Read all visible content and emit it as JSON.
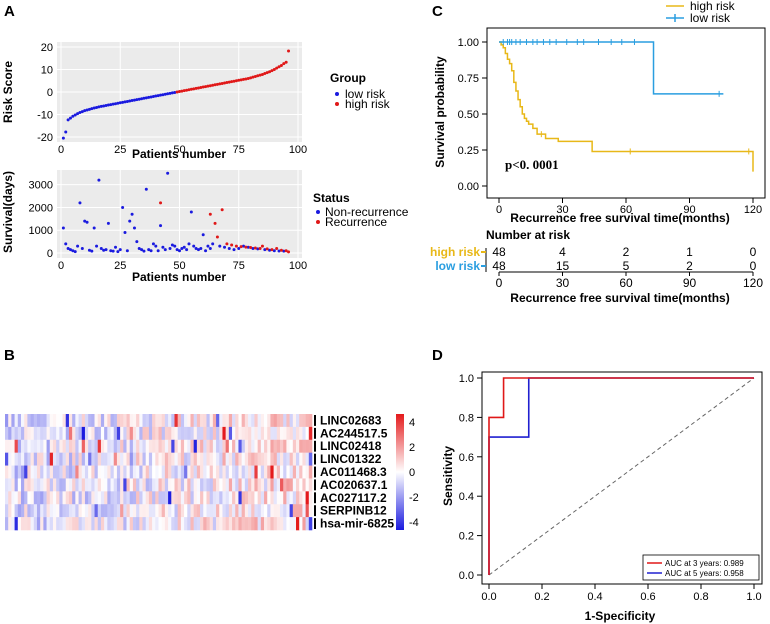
{
  "panels": {
    "a": "A",
    "b": "B",
    "c": "C",
    "d": "D"
  },
  "chart_data": [
    {
      "type": "scatter",
      "id": "risk-score",
      "title": "",
      "xlabel": "Patients number",
      "ylabel": "Risk Score",
      "xlim": [
        0,
        100
      ],
      "ylim": [
        -20,
        20
      ],
      "xticks": [
        0,
        25,
        50,
        75,
        100
      ],
      "yticks": [
        -20,
        -10,
        0,
        10,
        20
      ],
      "legend_title": "Group",
      "series": [
        {
          "name": "low risk",
          "color": "#1a1adf",
          "x": [
            1,
            2,
            3,
            4,
            5,
            6,
            7,
            8,
            9,
            10,
            11,
            12,
            13,
            14,
            15,
            16,
            17,
            18,
            19,
            20,
            21,
            22,
            23,
            24,
            25,
            26,
            27,
            28,
            29,
            30,
            31,
            32,
            33,
            34,
            35,
            36,
            37,
            38,
            39,
            40,
            41,
            42,
            43,
            44,
            45,
            46,
            47,
            48
          ],
          "y": [
            -20.5,
            -17.8,
            -12.4,
            -11.6,
            -10.8,
            -10.2,
            -9.6,
            -9.1,
            -8.7,
            -8.3,
            -8.0,
            -7.7,
            -7.4,
            -7.1,
            -6.9,
            -6.6,
            -6.4,
            -6.2,
            -6.0,
            -5.8,
            -5.6,
            -5.4,
            -5.2,
            -5.0,
            -4.8,
            -4.6,
            -4.4,
            -4.2,
            -4.0,
            -3.8,
            -3.6,
            -3.4,
            -3.2,
            -3.0,
            -2.8,
            -2.6,
            -2.4,
            -2.2,
            -2.0,
            -1.8,
            -1.6,
            -1.4,
            -1.2,
            -1.0,
            -0.8,
            -0.6,
            -0.4,
            -0.2
          ]
        },
        {
          "name": "high risk",
          "color": "#e01818",
          "x": [
            49,
            50,
            51,
            52,
            53,
            54,
            55,
            56,
            57,
            58,
            59,
            60,
            61,
            62,
            63,
            64,
            65,
            66,
            67,
            68,
            69,
            70,
            71,
            72,
            73,
            74,
            75,
            76,
            77,
            78,
            79,
            80,
            81,
            82,
            83,
            84,
            85,
            86,
            87,
            88,
            89,
            90,
            91,
            92,
            93,
            94,
            95,
            96
          ],
          "y": [
            0.0,
            0.2,
            0.4,
            0.6,
            0.8,
            1.0,
            1.2,
            1.4,
            1.6,
            1.8,
            2.0,
            2.2,
            2.4,
            2.6,
            2.8,
            3.0,
            3.2,
            3.4,
            3.6,
            3.8,
            4.0,
            4.2,
            4.4,
            4.6,
            4.8,
            5.0,
            5.2,
            5.4,
            5.6,
            5.8,
            6.0,
            6.3,
            6.6,
            6.9,
            7.2,
            7.5,
            7.8,
            8.2,
            8.6,
            9.0,
            9.5,
            10.0,
            10.6,
            11.2,
            11.8,
            12.6,
            13.2,
            18.2
          ]
        }
      ]
    },
    {
      "type": "scatter",
      "id": "survival-days",
      "title": "",
      "xlabel": "Patients number",
      "ylabel": "Survival(days)",
      "xlim": [
        0,
        100
      ],
      "ylim": [
        0,
        3600
      ],
      "xticks": [
        0,
        25,
        50,
        75,
        100
      ],
      "yticks": [
        0,
        1000,
        2000,
        3000
      ],
      "legend_title": "Status",
      "series": [
        {
          "name": "Non-recurrence",
          "color": "#1a1adf",
          "x": [
            1,
            2,
            3,
            4,
            5,
            6,
            7,
            8,
            9,
            10,
            11,
            12,
            13,
            14,
            15,
            16,
            17,
            18,
            19,
            20,
            21,
            22,
            23,
            24,
            25,
            26,
            27,
            28,
            29,
            30,
            31,
            32,
            33,
            34,
            35,
            36,
            37,
            38,
            39,
            40,
            41,
            42,
            43,
            44,
            45,
            46,
            47,
            48,
            49,
            50,
            51,
            52,
            53,
            54,
            55,
            56,
            57,
            58,
            59,
            60,
            61,
            62,
            63,
            64,
            67,
            69,
            71,
            73,
            75,
            77,
            79,
            81,
            83,
            86,
            88,
            90,
            92,
            94
          ],
          "y": [
            1100,
            400,
            200,
            150,
            100,
            60,
            300,
            2200,
            200,
            1400,
            1350,
            120,
            80,
            1100,
            300,
            3200,
            200,
            120,
            150,
            1300,
            100,
            80,
            250,
            60,
            150,
            2000,
            900,
            100,
            1400,
            1700,
            1100,
            500,
            200,
            150,
            80,
            2800,
            150,
            100,
            400,
            300,
            100,
            1200,
            250,
            150,
            3500,
            200,
            350,
            300,
            150,
            100,
            200,
            250,
            150,
            400,
            1800,
            300,
            200,
            150,
            200,
            800,
            100,
            300,
            200,
            400,
            300,
            250,
            200,
            150,
            200,
            300,
            250,
            200,
            180,
            150,
            120,
            100,
            90,
            80
          ]
        },
        {
          "name": "Recurrence",
          "color": "#e01818",
          "x": [
            42,
            63,
            65,
            66,
            68,
            70,
            72,
            74,
            76,
            78,
            80,
            82,
            84,
            85,
            87,
            89,
            91,
            93,
            95,
            96
          ],
          "y": [
            2200,
            1700,
            1300,
            700,
            1900,
            400,
            350,
            300,
            280,
            260,
            240,
            220,
            200,
            300,
            180,
            150,
            200,
            120,
            100,
            50
          ]
        }
      ]
    },
    {
      "type": "heatmap",
      "id": "lncrna-heatmap",
      "rows": [
        "LINC02683",
        "AC244517.5",
        "LINC02418",
        "LINC01322",
        "AC011468.3",
        "AC020637.1",
        "AC027117.2",
        "SERPINB12",
        "hsa-mir-6825"
      ],
      "n_columns": 96,
      "colorbar_ticks": [
        4,
        2,
        0,
        -2,
        -4
      ],
      "colors": {
        "high": "#e41a1c",
        "mid": "#ffffff",
        "low": "#1a1adf"
      }
    },
    {
      "type": "line",
      "id": "km-curve",
      "title": "",
      "xlabel": "Recurrence free survival time(months)",
      "ylabel": "Survival probability",
      "xlim": [
        0,
        120
      ],
      "ylim": [
        0,
        1
      ],
      "xticks": [
        0,
        30,
        60,
        90,
        120
      ],
      "yticks": [
        "0.00",
        "0.25",
        "0.50",
        "0.75",
        "1.00"
      ],
      "pvalue_text": "p<0. 0001",
      "series": [
        {
          "name": "high risk",
          "color": "#e8b818",
          "x": [
            0,
            1,
            2,
            3,
            4,
            5,
            6,
            7,
            8,
            9,
            10,
            11,
            12,
            13,
            14,
            16,
            18,
            22,
            28,
            31,
            44,
            63,
            120
          ],
          "y": [
            1.0,
            0.98,
            0.96,
            0.92,
            0.88,
            0.85,
            0.8,
            0.72,
            0.66,
            0.6,
            0.55,
            0.5,
            0.47,
            0.45,
            0.43,
            0.4,
            0.36,
            0.33,
            0.31,
            0.31,
            0.24,
            0.24,
            0.1
          ],
          "censor_x": [
            20,
            62,
            118
          ]
        },
        {
          "name": "low risk",
          "color": "#2a9ee0",
          "x": [
            0,
            73,
            73,
            106
          ],
          "y": [
            1.0,
            1.0,
            0.64,
            0.64
          ],
          "censor_x": [
            2,
            4,
            5,
            6,
            8,
            10,
            13,
            16,
            18,
            21,
            24,
            27,
            32,
            37,
            40,
            47,
            53,
            58,
            64,
            104
          ]
        }
      ]
    },
    {
      "type": "line",
      "id": "roc-curve",
      "title": "",
      "xlabel": "1-Specificity",
      "ylabel": "Sensitivity",
      "xlim": [
        0,
        1
      ],
      "ylim": [
        0,
        1
      ],
      "xticks": [
        "0.0",
        "0.2",
        "0.4",
        "0.6",
        "0.8",
        "1.0"
      ],
      "yticks": [
        "0.0",
        "0.2",
        "0.4",
        "0.6",
        "0.8",
        "1.0"
      ],
      "series": [
        {
          "name": "AUC at 3 years: 0.989",
          "color": "#e01818",
          "x": [
            0,
            0,
            0.055,
            0.055,
            0.09,
            0.09,
            1
          ],
          "y": [
            0,
            0.8,
            0.8,
            1,
            1,
            1,
            1
          ]
        },
        {
          "name": "AUC at 5 years: 0.958",
          "color": "#2020d0",
          "x": [
            0,
            0,
            0.15,
            0.15,
            1
          ],
          "y": [
            0,
            0.7,
            0.7,
            1,
            1
          ]
        }
      ]
    }
  ],
  "risk_table": {
    "title": "Number at risk",
    "rows": [
      {
        "label": "high risk",
        "color": "#e8b818",
        "values": [
          "48",
          "4",
          "2",
          "1",
          "0"
        ]
      },
      {
        "label": "low risk",
        "color": "#2a9ee0",
        "values": [
          "48",
          "15",
          "5",
          "2",
          "0"
        ]
      }
    ],
    "xticks": [
      "0",
      "30",
      "60",
      "90",
      "120"
    ],
    "xlabel": "Recurrence free survival time(months)"
  }
}
